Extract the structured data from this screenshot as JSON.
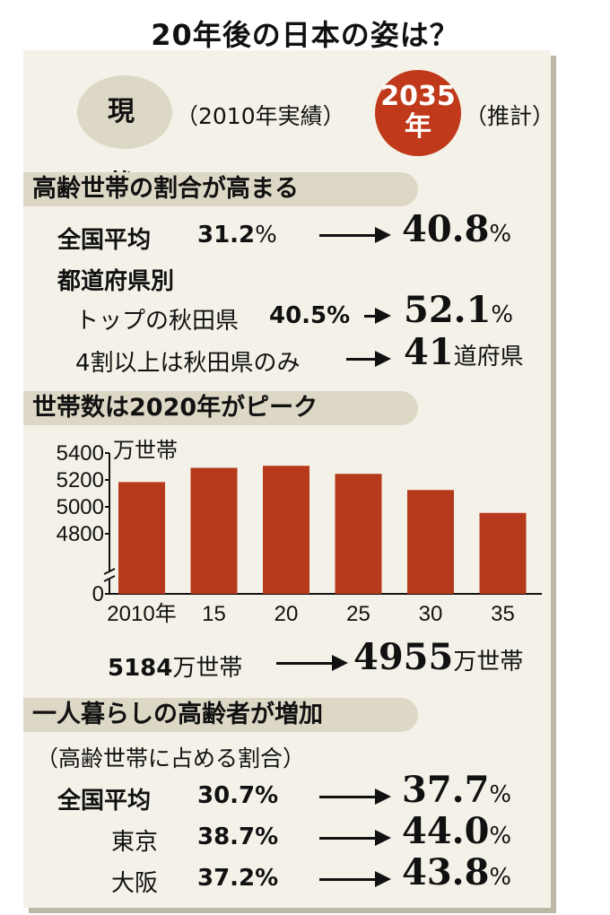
{
  "title": "20年後の日本の姿は？",
  "legend": {
    "current_label": "現　状",
    "current_note": "（2010年実績）",
    "future_year": "2035",
    "future_year_suffix": "年",
    "future_note": "（推計）",
    "future_color": "#c0391b"
  },
  "section1": {
    "heading": "高齢世帯の割合が高まる",
    "national_label": "全国平均",
    "national_from": "31.2",
    "national_to": "40.8",
    "pct": "%",
    "by_pref_label": "都道府県別",
    "top_label": "トップの秋田県",
    "top_from": "40.5%",
    "top_to": "52.1",
    "over40_label": "4割以上は秋田県のみ",
    "over40_to": "41",
    "over40_unit": "道府県"
  },
  "section2": {
    "heading": "世帯数は2020年がピーク",
    "summary_from": "5184",
    "summary_unit": "万世帯",
    "summary_to": "4955"
  },
  "chart_data": {
    "type": "bar",
    "unit_label": "万世帯",
    "categories": [
      "2010年",
      "15",
      "20",
      "25",
      "30",
      "35"
    ],
    "values": [
      5184,
      5290,
      5305,
      5245,
      5125,
      4955
    ],
    "y_ticks": [
      0,
      4800,
      5000,
      5200,
      5400
    ],
    "ylim": [
      4600,
      5400
    ],
    "axis_break": true,
    "bar_color": "#b5391a",
    "grid": false
  },
  "section3": {
    "heading": "一人暮らしの高齢者が増加",
    "note": "（高齢世帯に占める割合）",
    "rows": [
      {
        "label": "全国平均",
        "from": "30.7%",
        "to": "37.7",
        "pct": "%"
      },
      {
        "label": "東京",
        "from": "38.7%",
        "to": "44.0",
        "pct": "%"
      },
      {
        "label": "大阪",
        "from": "37.2%",
        "to": "43.8",
        "pct": "%"
      }
    ]
  }
}
